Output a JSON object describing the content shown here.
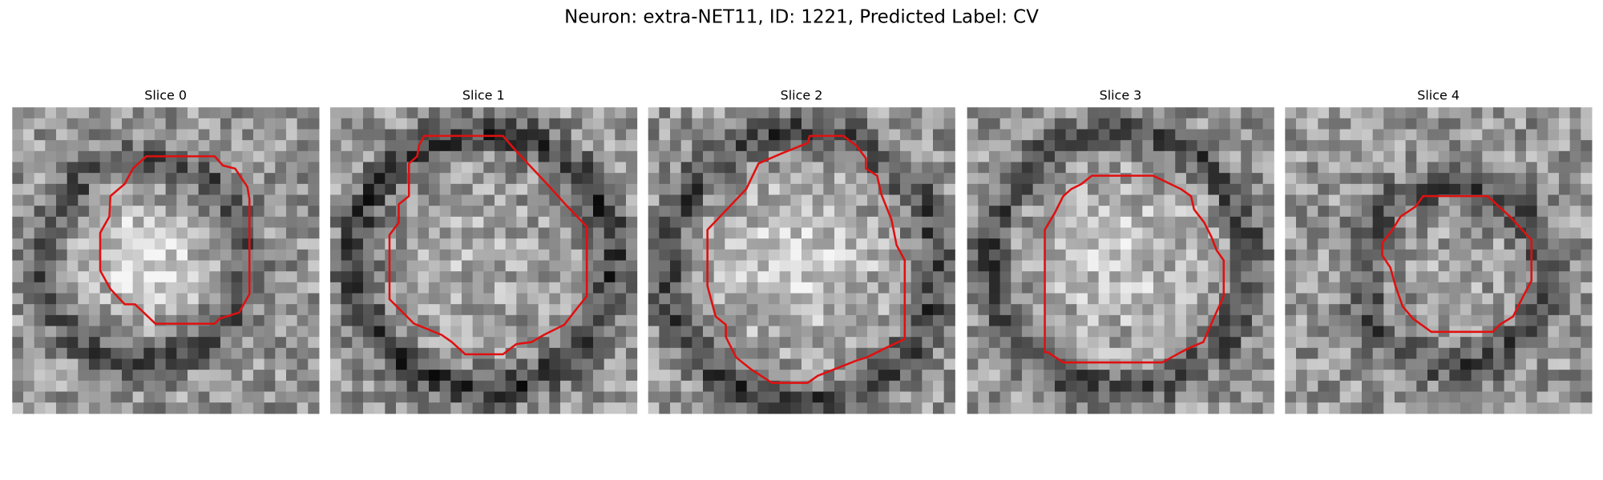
{
  "title": "Neuron: extra-NET11, ID: 1221, Predicted Label: CV",
  "panels": [
    {
      "title": "Slice 0"
    },
    {
      "title": "Slice 1"
    },
    {
      "title": "Slice 2"
    },
    {
      "title": "Slice 3"
    },
    {
      "title": "Slice 4"
    }
  ]
}
